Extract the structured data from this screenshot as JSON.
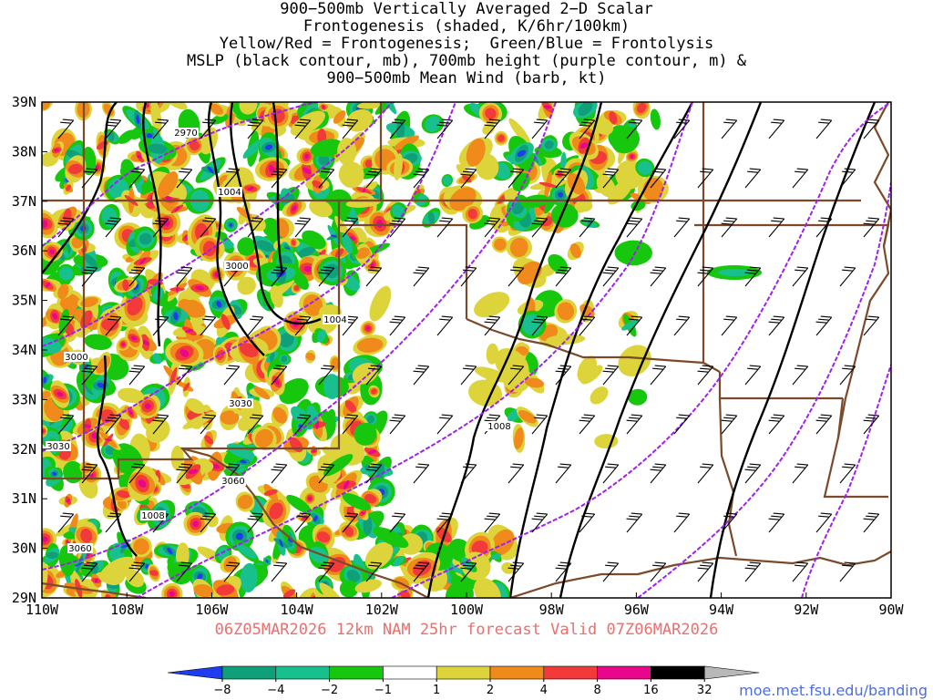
{
  "title_lines": [
    "900−500mb Vertically Averaged 2−D Scalar",
    "Frontogenesis (shaded, K/6hr/100km)",
    "Yellow/Red = Frontogenesis;  Green/Blue = Frontolysis",
    "MSLP (black contour, mb), 700mb height (purple contour, m) &",
    "900−500mb Mean Wind (barb, kt)"
  ],
  "y_labels": [
    "39N",
    "38N",
    "37N",
    "36N",
    "35N",
    "34N",
    "33N",
    "32N",
    "31N",
    "30N",
    "29N"
  ],
  "x_labels": [
    "110W",
    "108W",
    "106W",
    "104W",
    "102W",
    "100W",
    "98W",
    "96W",
    "94W",
    "92W",
    "90W"
  ],
  "contour_labels": {
    "mslp": [
      "1004",
      "1004",
      "1008",
      "1008"
    ],
    "height": [
      "2970",
      "3000",
      "3000",
      "3030",
      "3030",
      "3060",
      "3060"
    ]
  },
  "footer": "06Z05MAR2026 12km NAM 25hr forecast Valid 07Z06MAR2026",
  "credit": "moe.met.fsu.edu/banding",
  "colorbar": {
    "labels": [
      "−8",
      "−4",
      "−2",
      "−1",
      "1",
      "2",
      "4",
      "8",
      "16",
      "32"
    ],
    "colors": [
      "#1f3cf0",
      "#0fa07a",
      "#18c08e",
      "#16c70e",
      "#ffffff",
      "#dcd43a",
      "#f08a1a",
      "#f23a3a",
      "#e8078c",
      "#000000",
      "#b8b8b8"
    ]
  },
  "colors": {
    "mslp_contour": "#000000",
    "height_contour": "#a020f0",
    "borders": "#7a4a2a",
    "footer_text": "#e8706e"
  }
}
